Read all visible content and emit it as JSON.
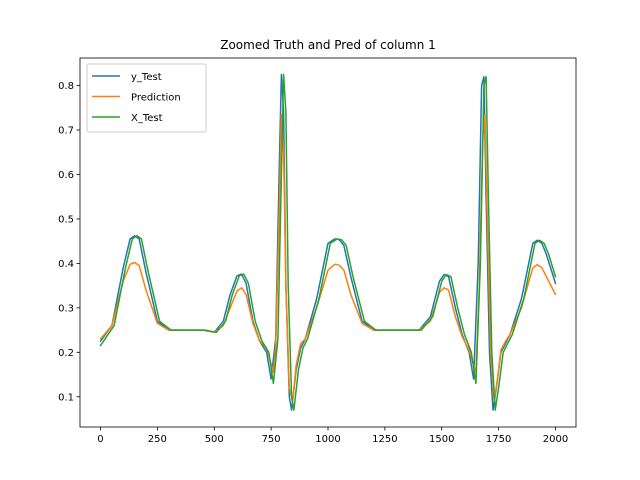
{
  "chart_data": {
    "type": "line",
    "title": "Zoomed Truth and Pred of column 1",
    "xlabel": "",
    "ylabel": "",
    "xlim": [
      -90,
      2090
    ],
    "ylim": [
      0.032,
      0.862
    ],
    "xticks": [
      0,
      250,
      500,
      750,
      1000,
      1250,
      1500,
      1750,
      2000
    ],
    "yticks": [
      0.1,
      0.2,
      0.3,
      0.4,
      0.5,
      0.6,
      0.7,
      0.8
    ],
    "grid": false,
    "legend_position": "top-left",
    "series": [
      {
        "name": "y_Test",
        "color": "#1f77b4",
        "x": [
          0,
          50,
          100,
          130,
          150,
          170,
          200,
          250,
          300,
          350,
          400,
          450,
          500,
          540,
          570,
          600,
          620,
          640,
          670,
          700,
          730,
          750,
          770,
          785,
          795,
          805,
          815,
          830,
          840,
          860,
          880,
          900,
          950,
          1000,
          1030,
          1050,
          1070,
          1100,
          1150,
          1200,
          1250,
          1300,
          1350,
          1400,
          1450,
          1490,
          1510,
          1530,
          1560,
          1590,
          1620,
          1640,
          1660,
          1675,
          1685,
          1695,
          1710,
          1725,
          1740,
          1760,
          1780,
          1800,
          1850,
          1900,
          1920,
          1940,
          1960,
          2000
        ],
        "y": [
          0.225,
          0.26,
          0.39,
          0.455,
          0.462,
          0.455,
          0.38,
          0.27,
          0.25,
          0.25,
          0.25,
          0.25,
          0.245,
          0.27,
          0.33,
          0.372,
          0.376,
          0.355,
          0.27,
          0.225,
          0.2,
          0.14,
          0.23,
          0.6,
          0.825,
          0.74,
          0.35,
          0.1,
          0.07,
          0.16,
          0.21,
          0.23,
          0.32,
          0.445,
          0.455,
          0.453,
          0.44,
          0.37,
          0.27,
          0.25,
          0.25,
          0.25,
          0.25,
          0.25,
          0.28,
          0.36,
          0.375,
          0.37,
          0.3,
          0.24,
          0.2,
          0.14,
          0.4,
          0.8,
          0.82,
          0.55,
          0.2,
          0.07,
          0.12,
          0.2,
          0.22,
          0.24,
          0.32,
          0.445,
          0.452,
          0.445,
          0.42,
          0.355
        ]
      },
      {
        "name": "Prediction",
        "color": "#ff7f0e",
        "x": [
          0,
          50,
          100,
          130,
          150,
          170,
          200,
          250,
          300,
          350,
          400,
          450,
          500,
          540,
          570,
          600,
          620,
          640,
          670,
          700,
          730,
          760,
          770,
          785,
          795,
          805,
          815,
          830,
          845,
          860,
          880,
          900,
          950,
          1000,
          1030,
          1050,
          1070,
          1100,
          1150,
          1200,
          1250,
          1300,
          1350,
          1400,
          1450,
          1490,
          1510,
          1530,
          1560,
          1590,
          1620,
          1650,
          1665,
          1680,
          1690,
          1700,
          1715,
          1730,
          1745,
          1760,
          1780,
          1800,
          1850,
          1900,
          1920,
          1940,
          1960,
          2000
        ],
        "y": [
          0.23,
          0.26,
          0.36,
          0.398,
          0.402,
          0.395,
          0.34,
          0.265,
          0.25,
          0.25,
          0.25,
          0.25,
          0.245,
          0.26,
          0.3,
          0.338,
          0.345,
          0.33,
          0.265,
          0.225,
          0.21,
          0.155,
          0.21,
          0.5,
          0.735,
          0.65,
          0.35,
          0.12,
          0.09,
          0.17,
          0.22,
          0.23,
          0.3,
          0.385,
          0.398,
          0.396,
          0.385,
          0.33,
          0.265,
          0.25,
          0.25,
          0.25,
          0.25,
          0.25,
          0.27,
          0.335,
          0.345,
          0.34,
          0.28,
          0.235,
          0.205,
          0.155,
          0.35,
          0.68,
          0.735,
          0.5,
          0.2,
          0.09,
          0.14,
          0.205,
          0.225,
          0.24,
          0.3,
          0.39,
          0.397,
          0.39,
          0.37,
          0.33
        ]
      },
      {
        "name": "X_Test",
        "color": "#2ca02c",
        "x": [
          0,
          60,
          110,
          140,
          160,
          180,
          210,
          260,
          310,
          360,
          410,
          460,
          510,
          550,
          580,
          610,
          630,
          650,
          680,
          710,
          740,
          760,
          780,
          795,
          805,
          815,
          825,
          840,
          850,
          870,
          890,
          910,
          960,
          1010,
          1040,
          1060,
          1080,
          1110,
          1160,
          1210,
          1260,
          1310,
          1360,
          1410,
          1460,
          1500,
          1520,
          1540,
          1570,
          1600,
          1630,
          1650,
          1670,
          1685,
          1695,
          1705,
          1720,
          1735,
          1750,
          1770,
          1790,
          1810,
          1860,
          1910,
          1930,
          1950,
          1970,
          2000
        ],
        "y": [
          0.215,
          0.26,
          0.39,
          0.455,
          0.462,
          0.455,
          0.38,
          0.27,
          0.25,
          0.25,
          0.25,
          0.25,
          0.245,
          0.27,
          0.33,
          0.372,
          0.376,
          0.355,
          0.27,
          0.225,
          0.2,
          0.13,
          0.23,
          0.6,
          0.825,
          0.74,
          0.35,
          0.1,
          0.07,
          0.16,
          0.21,
          0.23,
          0.32,
          0.445,
          0.455,
          0.453,
          0.44,
          0.37,
          0.27,
          0.25,
          0.25,
          0.25,
          0.25,
          0.25,
          0.28,
          0.36,
          0.375,
          0.37,
          0.3,
          0.24,
          0.2,
          0.13,
          0.4,
          0.8,
          0.82,
          0.55,
          0.2,
          0.07,
          0.12,
          0.2,
          0.22,
          0.24,
          0.32,
          0.445,
          0.452,
          0.445,
          0.42,
          0.37
        ]
      }
    ]
  }
}
